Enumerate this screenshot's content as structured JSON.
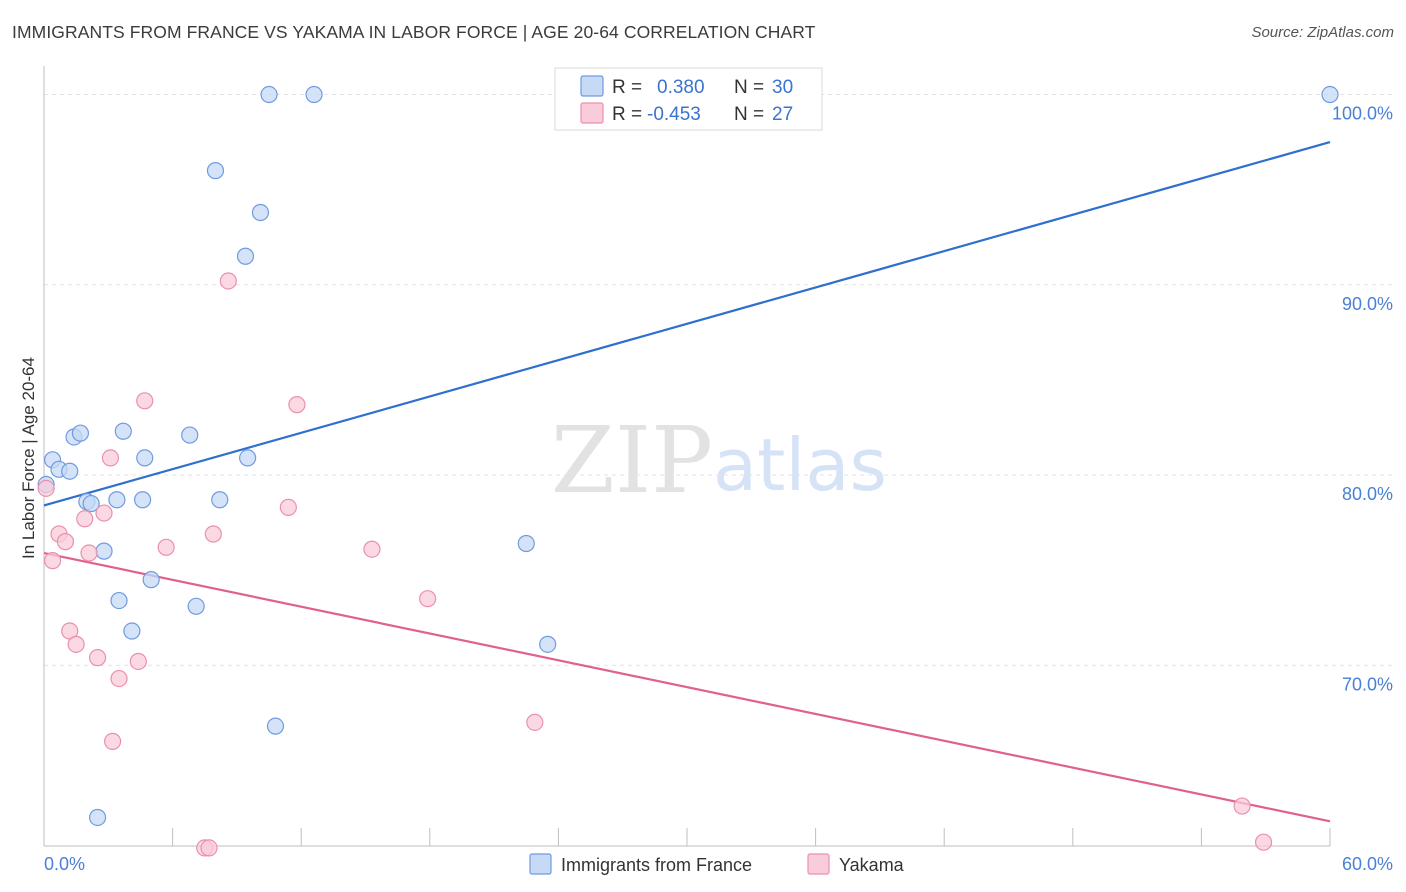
{
  "title": "IMMIGRANTS FROM FRANCE VS YAKAMA IN LABOR FORCE | AGE 20-64 CORRELATION CHART",
  "source": "Source: ZipAtlas.com",
  "watermark": {
    "zip": "ZIP",
    "atlas": "atlas"
  },
  "chart_data": {
    "type": "scatter",
    "xlabel": "",
    "ylabel": "In Labor Force | Age 20-64",
    "xlim": [
      0,
      60
    ],
    "ylim": [
      60.5,
      101.5
    ],
    "x_tick_labels": {
      "left": "0.0%",
      "right": "60.0%"
    },
    "y_ticks": [
      {
        "value": 70,
        "label": "70.0%"
      },
      {
        "value": 80,
        "label": "80.0%"
      },
      {
        "value": 90,
        "label": "90.0%"
      },
      {
        "value": 100,
        "label": "100.0%"
      }
    ],
    "grid": true,
    "legend_placement": "top-center",
    "series": [
      {
        "name": "Immigrants from France",
        "color": "#6f9be0",
        "fill": "#c6d9f5",
        "line_color": "#2f6fce",
        "R_label": "R =",
        "R": "0.380",
        "N_label": "N =",
        "N": "30",
        "trend": {
          "x": [
            0,
            60
          ],
          "y": [
            78.4,
            97.5
          ]
        },
        "points": [
          [
            0.1,
            79.5
          ],
          [
            0.4,
            80.8
          ],
          [
            0.7,
            80.3
          ],
          [
            1.2,
            80.2
          ],
          [
            1.4,
            82.0
          ],
          [
            1.7,
            82.2
          ],
          [
            2.0,
            78.6
          ],
          [
            2.2,
            78.5
          ],
          [
            2.8,
            76.0
          ],
          [
            3.4,
            78.7
          ],
          [
            3.7,
            82.3
          ],
          [
            4.6,
            78.7
          ],
          [
            4.7,
            80.9
          ],
          [
            5.0,
            74.5
          ],
          [
            3.5,
            73.4
          ],
          [
            4.1,
            71.8
          ],
          [
            6.8,
            82.1
          ],
          [
            7.1,
            73.1
          ],
          [
            8.2,
            78.7
          ],
          [
            9.4,
            91.5
          ],
          [
            9.5,
            80.9
          ],
          [
            10.1,
            93.8
          ],
          [
            8.0,
            96.0
          ],
          [
            10.8,
            66.8
          ],
          [
            10.5,
            100.0
          ],
          [
            12.6,
            100.0
          ],
          [
            2.5,
            62.0
          ],
          [
            22.5,
            76.4
          ],
          [
            23.5,
            71.1
          ],
          [
            60.0,
            100.0
          ]
        ]
      },
      {
        "name": "Yakama",
        "color": "#ec8fae",
        "fill": "#f8ccd9",
        "line_color": "#e0608f",
        "R_label": "R =",
        "R": "-0.453",
        "N_label": "N =",
        "N": "27",
        "trend": {
          "x": [
            0,
            60
          ],
          "y": [
            75.9,
            61.8
          ]
        },
        "points": [
          [
            0.1,
            79.3
          ],
          [
            0.4,
            75.5
          ],
          [
            0.7,
            76.9
          ],
          [
            1.0,
            76.5
          ],
          [
            1.2,
            71.8
          ],
          [
            1.5,
            71.1
          ],
          [
            1.9,
            77.7
          ],
          [
            2.1,
            75.9
          ],
          [
            2.5,
            70.4
          ],
          [
            2.8,
            78.0
          ],
          [
            3.1,
            80.9
          ],
          [
            3.2,
            66.0
          ],
          [
            3.5,
            69.3
          ],
          [
            4.4,
            70.2
          ],
          [
            4.7,
            83.9
          ],
          [
            5.7,
            76.2
          ],
          [
            7.5,
            60.4
          ],
          [
            7.7,
            60.4
          ],
          [
            7.9,
            76.9
          ],
          [
            8.6,
            90.2
          ],
          [
            11.4,
            78.3
          ],
          [
            11.8,
            83.7
          ],
          [
            15.3,
            76.1
          ],
          [
            17.9,
            73.5
          ],
          [
            22.9,
            67.0
          ],
          [
            55.9,
            62.6
          ],
          [
            56.9,
            60.7
          ]
        ]
      }
    ]
  }
}
